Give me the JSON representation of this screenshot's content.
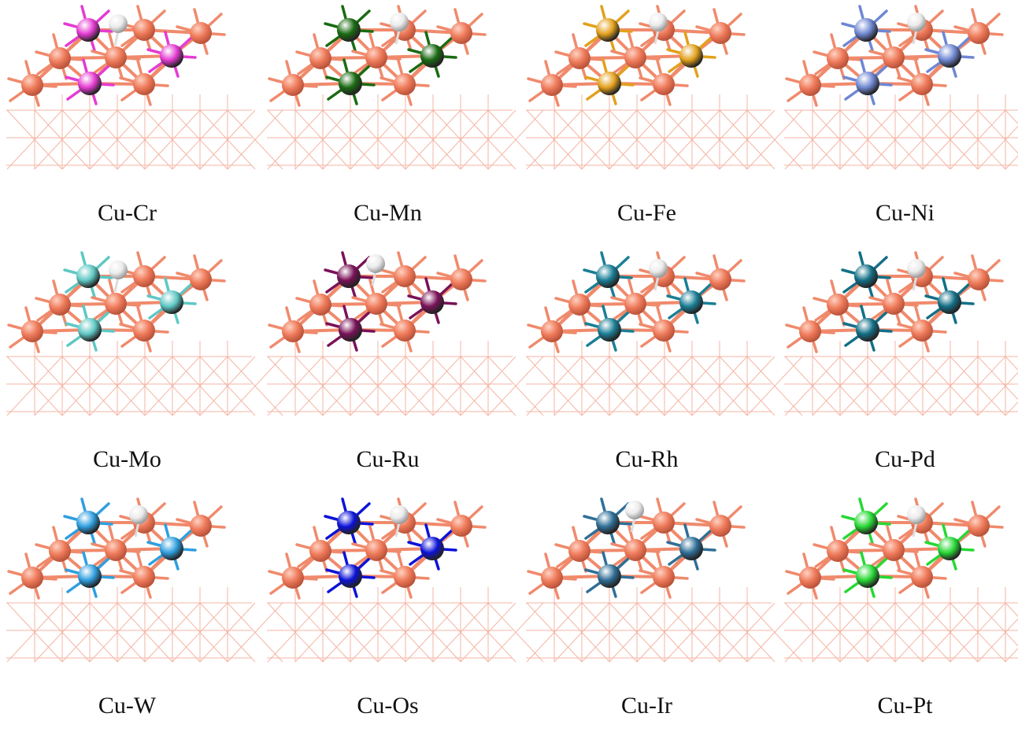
{
  "figure": {
    "panels": [
      {
        "label": "Cu-Cr",
        "dopant_color": "#e53bd2",
        "h_site": "top"
      },
      {
        "label": "Cu-Mn",
        "dopant_color": "#1a6b12",
        "h_site": "top-right"
      },
      {
        "label": "Cu-Fe",
        "dopant_color": "#e3a01c",
        "h_site": "top-right"
      },
      {
        "label": "Cu-Ni",
        "dopant_color": "#6f87d2",
        "h_site": "top-right"
      },
      {
        "label": "Cu-Mo",
        "dopant_color": "#5fc8c4",
        "h_site": "top"
      },
      {
        "label": "Cu-Ru",
        "dopant_color": "#7a1258",
        "h_site": "top-left"
      },
      {
        "label": "Cu-Rh",
        "dopant_color": "#1a7f96",
        "h_site": "top-right"
      },
      {
        "label": "Cu-Pd",
        "dopant_color": "#136f87",
        "h_site": "top-right"
      },
      {
        "label": "Cu-W",
        "dopant_color": "#2f9fdf",
        "h_site": "top-right"
      },
      {
        "label": "Cu-Os",
        "dopant_color": "#0c12d8",
        "h_site": "top-right"
      },
      {
        "label": "Cu-Ir",
        "dopant_color": "#2f6f97",
        "h_site": "top-left"
      },
      {
        "label": "Cu-Pt",
        "dopant_color": "#27d834",
        "h_site": "top-right"
      }
    ],
    "colors": {
      "cu_atom": "#ee7a5a",
      "cu_bond": "#f08a6c",
      "lattice": "#f3a996",
      "hydrogen": "#ececec"
    }
  }
}
